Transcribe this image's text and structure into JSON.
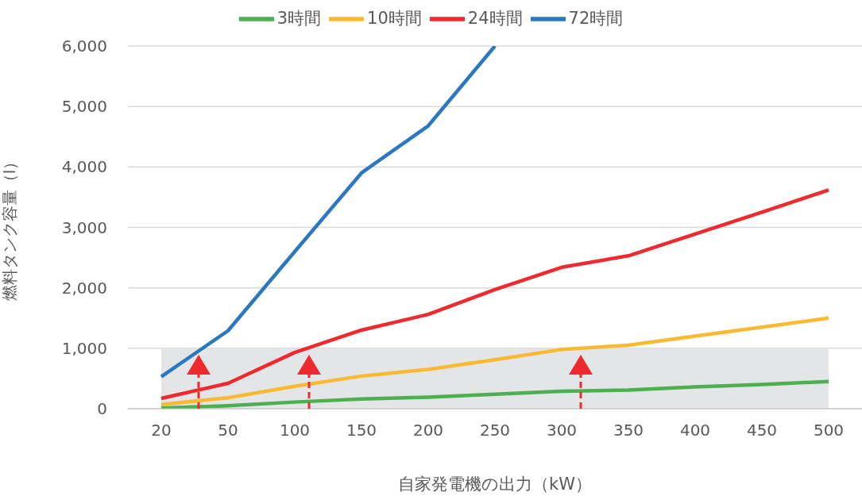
{
  "chart_data": {
    "type": "line",
    "xlabel": "自家発電機の出力（kW）",
    "ylabel": "燃料タンク容量（l）",
    "categories": [
      "20",
      "50",
      "100",
      "150",
      "200",
      "250",
      "300",
      "350",
      "400",
      "450",
      "500"
    ],
    "series": [
      {
        "name": "3時間",
        "color": "#4caf50",
        "values": [
          10,
          50,
          110,
          160,
          190,
          240,
          290,
          310,
          360,
          400,
          450
        ]
      },
      {
        "name": "10時間",
        "color": "#fbb832",
        "values": [
          70,
          180,
          370,
          540,
          650,
          810,
          980,
          1050,
          1200,
          1350,
          1500
        ]
      },
      {
        "name": "24時間",
        "color": "#ee2a2e",
        "values": [
          170,
          420,
          930,
          1300,
          1560,
          1970,
          2340,
          2530,
          2890,
          3250,
          3620
        ]
      },
      {
        "name": "72時間",
        "color": "#2b78c0",
        "values": [
          530,
          1290,
          2600,
          3900,
          4680,
          6000,
          null,
          null,
          null,
          null,
          null
        ]
      }
    ],
    "ylim": [
      0,
      6000
    ],
    "yticks": [
      {
        "value": 0,
        "label": "0"
      },
      {
        "value": 1000,
        "label": "1,000"
      },
      {
        "value": 2000,
        "label": "2,000"
      },
      {
        "value": 3000,
        "label": "3,000"
      },
      {
        "value": 4000,
        "label": "4,000"
      },
      {
        "value": 5000,
        "label": "5,000"
      },
      {
        "value": 6000,
        "label": "6,000"
      }
    ],
    "bands": [
      {
        "axis": "y",
        "from": 0,
        "to": 1000,
        "color": "#e4e5e7"
      }
    ],
    "grid": "y",
    "legend": "top",
    "marker": "none",
    "line_style": "solid"
  }
}
